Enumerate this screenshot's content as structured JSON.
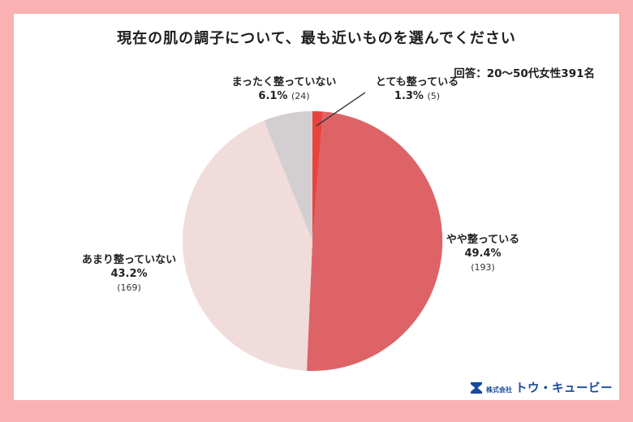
{
  "frame": {
    "border_color": "#f9b1b2",
    "card_color": "#ffffff"
  },
  "title": "現在の肌の調子について、最も近いものを選んでください",
  "respondents_note": "回答：20〜50代女性391名",
  "chart_data": {
    "type": "pie",
    "title": "現在の肌の調子について、最も近いものを選んでください",
    "total_respondents": 391,
    "start_angle_deg": 0,
    "direction": "clockwise",
    "legend_position": "labels around pie",
    "slices": [
      {
        "label": "とても整っている",
        "pct": 1.3,
        "count": 5,
        "pct_display": "1.3%",
        "count_display": "(5)",
        "color": "#e94340"
      },
      {
        "label": "やや整っている",
        "pct": 49.4,
        "count": 193,
        "pct_display": "49.4%",
        "count_display": "(193)",
        "color": "#dd6367"
      },
      {
        "label": "あまり整っていない",
        "pct": 43.2,
        "count": 169,
        "pct_display": "43.2%",
        "count_display": "(169)",
        "color": "#f0dcdb"
      },
      {
        "label": "まったく整っていない",
        "pct": 6.1,
        "count": 24,
        "pct_display": "6.1%",
        "count_display": "(24)",
        "color": "#d3cfd1"
      }
    ]
  },
  "logo": {
    "company_prefix": "株式会社",
    "company_name": "トウ・キュービー",
    "color": "#17499c"
  }
}
